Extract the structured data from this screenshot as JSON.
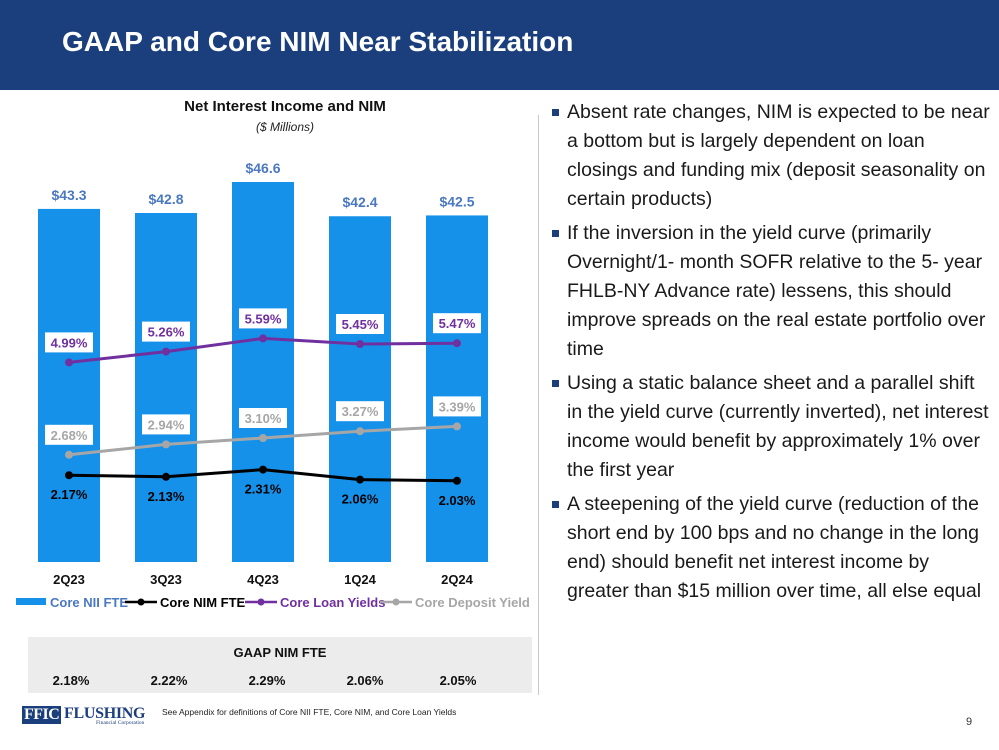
{
  "header": {
    "title": "GAAP and Core NIM Near Stabilization"
  },
  "chart_data": {
    "type": "bar",
    "title": "Net Interest Income and NIM",
    "subtitle": "($ Millions)",
    "categories": [
      "2Q23",
      "3Q23",
      "4Q23",
      "1Q24",
      "2Q24"
    ],
    "bars": {
      "name": "Core NII FTE",
      "values": [
        43.3,
        42.8,
        46.6,
        42.4,
        42.5
      ],
      "labels": [
        "$43.3",
        "$42.8",
        "$46.6",
        "$42.4",
        "$42.5"
      ],
      "color": "#1591ea"
    },
    "lines": [
      {
        "name": "Core NIM FTE",
        "values": [
          2.17,
          2.13,
          2.31,
          2.06,
          2.03
        ],
        "labels": [
          "2.17%",
          "2.13%",
          "2.31%",
          "2.06%",
          "2.03%"
        ],
        "color": "#000000"
      },
      {
        "name": "Core Loan Yields",
        "values": [
          4.99,
          5.26,
          5.59,
          5.45,
          5.47
        ],
        "labels": [
          "4.99%",
          "5.26%",
          "5.59%",
          "5.45%",
          "5.47%"
        ],
        "color": "#7030a0"
      },
      {
        "name": "Core Deposit Yield",
        "values": [
          2.68,
          2.94,
          3.1,
          3.27,
          3.39
        ],
        "labels": [
          "2.68%",
          "2.94%",
          "3.10%",
          "3.27%",
          "3.39%"
        ],
        "color": "#a6a6a6"
      }
    ],
    "xlabel": "",
    "ylabel": "",
    "legend_position": "bottom",
    "grid": false
  },
  "gaap": {
    "title": "GAAP NIM FTE",
    "values": [
      "2.18%",
      "2.22%",
      "2.29%",
      "2.06%",
      "2.05%"
    ]
  },
  "bullets": [
    "Absent rate changes, NIM is expected to be near a bottom but is largely dependent on loan closings and funding mix (deposit seasonality on certain products)",
    "If the inversion in the yield curve (primarily Overnight/1- month SOFR relative to the 5- year FHLB-NY Advance rate) lessens, this should improve spreads on the real estate portfolio over time",
    "Using a static balance sheet and a parallel shift in the yield curve (currently inverted), net interest income would benefit by approximately 1% over the first year",
    " A steepening of the yield curve (reduction of the short end by 100 bps and no change in the long end) should benefit net interest income by greater than $15 million over time, all else equal"
  ],
  "footer": {
    "logo_ffic": "FFIC",
    "logo_flushing": "FLUSHING",
    "logo_sub": "Financial Corporation",
    "footnote": "See Appendix for definitions of Core NII FTE, Core NIM, and Core Loan Yields",
    "page": "9"
  }
}
